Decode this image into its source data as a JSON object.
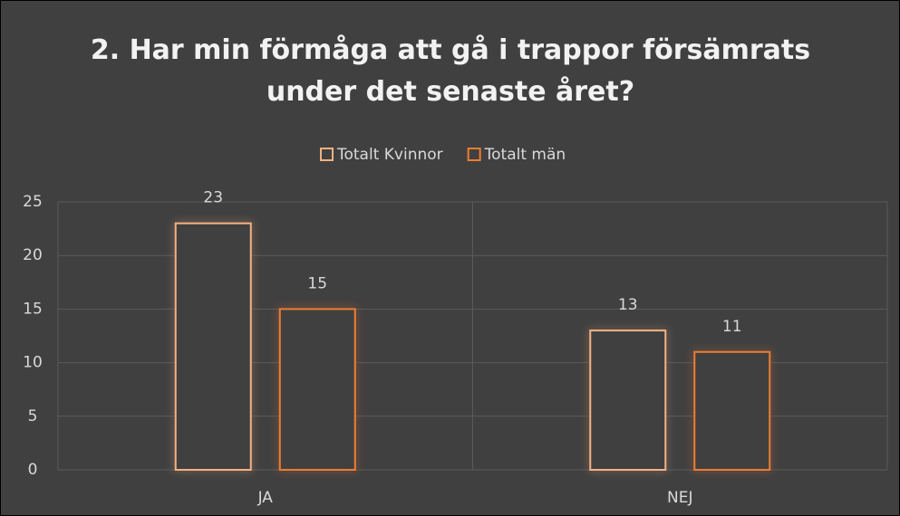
{
  "chart_data": {
    "type": "bar",
    "title": "2. Har min förmåga att gå i trappor försämrats under det senaste året?",
    "categories": [
      "JA",
      "NEJ"
    ],
    "series": [
      {
        "name": "Totalt Kvinnor",
        "color": "#f4b183",
        "values": [
          23,
          13
        ]
      },
      {
        "name": "Totalt män",
        "color": "#ed7d31",
        "values": [
          15,
          11
        ]
      }
    ],
    "ylim": [
      0,
      25
    ],
    "yticks": [
      0,
      5,
      10,
      15,
      20,
      25
    ],
    "grid": true,
    "legend": "top"
  }
}
